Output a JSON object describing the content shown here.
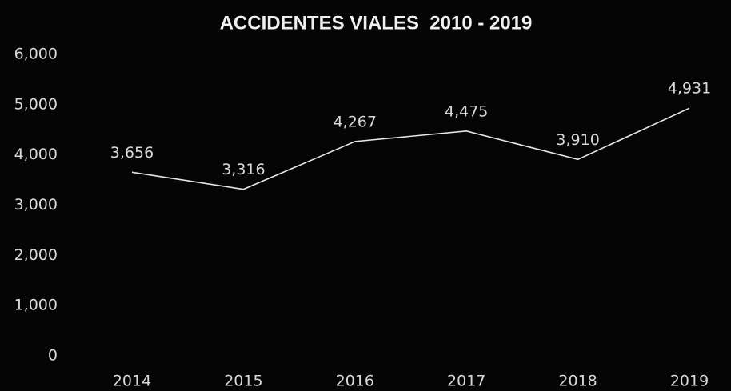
{
  "chart_data": {
    "type": "line",
    "title": "ACCIDENTES VIALES  2010 - 2019",
    "categories": [
      "2014",
      "2015",
      "2016",
      "2017",
      "2018",
      "2019"
    ],
    "values": [
      3656,
      3316,
      4267,
      4475,
      3910,
      4931
    ],
    "value_labels": [
      "3,656",
      "3,316",
      "4,267",
      "4,475",
      "3,910",
      "4,931"
    ],
    "color": "#e6e6e6",
    "ylim": [
      0,
      6000
    ],
    "yticks": [
      0,
      {
        "value": 1000,
        "label": "1,000"
      },
      {
        "value": 2000,
        "label": "2,000"
      },
      {
        "value": 3000,
        "label": "3,000"
      },
      {
        "value": 4000,
        "label": "4,000"
      },
      {
        "value": 5000,
        "label": "5,000"
      },
      {
        "value": 6000,
        "label": "6,000"
      }
    ],
    "grid": false
  }
}
